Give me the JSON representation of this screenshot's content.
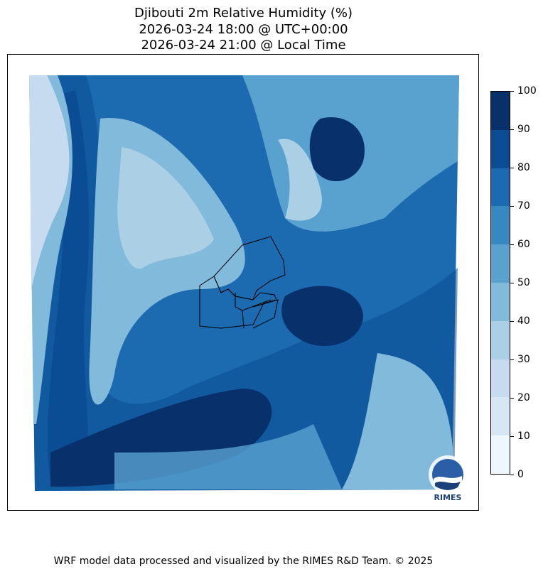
{
  "title": {
    "line1": "Djibouti 2m Relative Humidity (%)",
    "line2": "2026-03-24 18:00 @ UTC+00:00",
    "line3": "2026-03-24 21:00 @ Local Time"
  },
  "colorbar": {
    "ticks": [
      "0",
      "10",
      "20",
      "30",
      "40",
      "50",
      "60",
      "70",
      "80",
      "90",
      "100"
    ],
    "colors": [
      "#eff6fc",
      "#d6e6f4",
      "#c6dbef",
      "#abd0e6",
      "#82badb",
      "#59a1cf",
      "#3787c0",
      "#1c6aaf",
      "#0b4d94",
      "#08306b"
    ]
  },
  "logo": {
    "text": "RIMES"
  },
  "footer": "WRF model data processed and visualized by the RIMES R&D Team. © 2025"
}
